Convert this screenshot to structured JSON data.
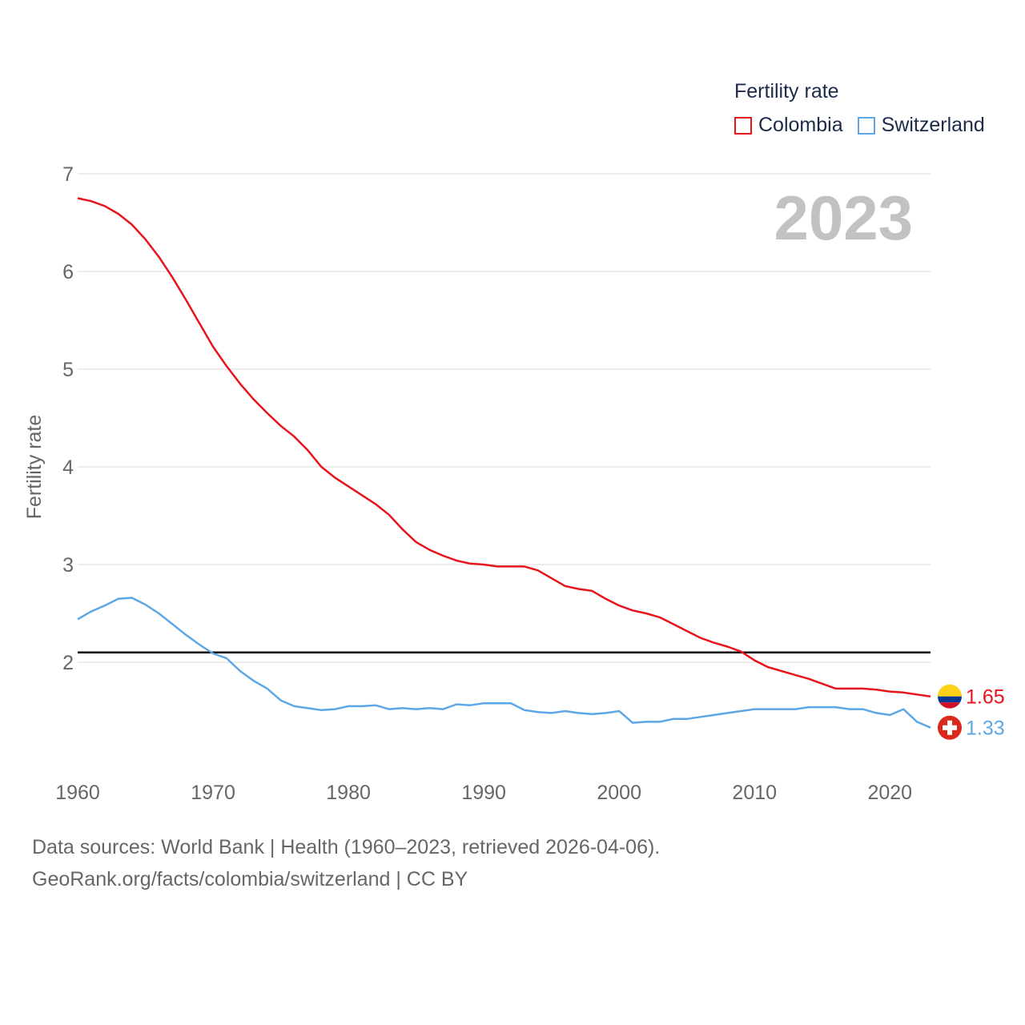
{
  "legend": {
    "title": "Fertility rate",
    "items": [
      {
        "label": "Colombia",
        "color": "#e8141b"
      },
      {
        "label": "Switzerland",
        "color": "#5ea7e6"
      }
    ]
  },
  "footer": {
    "line1": "Data sources: World Bank | Health (1960–2023, retrieved 2026-04-06).",
    "line2": "GeoRank.org/facts/colombia/switzerland | CC BY"
  },
  "chart_data": {
    "type": "line",
    "title": "Fertility rate",
    "year_label": "2023",
    "xlabel": "",
    "ylabel": "Fertility rate",
    "xlim": [
      1960,
      2023
    ],
    "ylim": [
      1,
      7
    ],
    "x_ticks": [
      1960,
      1970,
      1980,
      1990,
      2000,
      2010,
      2020
    ],
    "y_ticks": [
      2,
      3,
      4,
      5,
      6,
      7
    ],
    "reference_line": {
      "value": 2.1,
      "color": "#000000"
    },
    "x": [
      1960,
      1961,
      1962,
      1963,
      1964,
      1965,
      1966,
      1967,
      1968,
      1969,
      1970,
      1971,
      1972,
      1973,
      1974,
      1975,
      1976,
      1977,
      1978,
      1979,
      1980,
      1981,
      1982,
      1983,
      1984,
      1985,
      1986,
      1987,
      1988,
      1989,
      1990,
      1991,
      1992,
      1993,
      1994,
      1995,
      1996,
      1997,
      1998,
      1999,
      2000,
      2001,
      2002,
      2003,
      2004,
      2005,
      2006,
      2007,
      2008,
      2009,
      2010,
      2011,
      2012,
      2013,
      2014,
      2015,
      2016,
      2017,
      2018,
      2019,
      2020,
      2021,
      2022,
      2023
    ],
    "series": [
      {
        "name": "Colombia",
        "color": "#e8141b",
        "end_label": "1.65",
        "flag": "colombia",
        "values": [
          6.75,
          6.72,
          6.67,
          6.59,
          6.48,
          6.33,
          6.15,
          5.94,
          5.71,
          5.47,
          5.23,
          5.03,
          4.85,
          4.69,
          4.55,
          4.42,
          4.31,
          4.17,
          4.0,
          3.89,
          3.8,
          3.71,
          3.62,
          3.51,
          3.36,
          3.23,
          3.15,
          3.09,
          3.04,
          3.01,
          3.0,
          2.98,
          2.98,
          2.98,
          2.94,
          2.86,
          2.78,
          2.75,
          2.73,
          2.65,
          2.58,
          2.53,
          2.5,
          2.46,
          2.39,
          2.32,
          2.25,
          2.2,
          2.16,
          2.11,
          2.02,
          1.95,
          1.91,
          1.87,
          1.83,
          1.78,
          1.73,
          1.73,
          1.73,
          1.72,
          1.7,
          1.69,
          1.67,
          1.65
        ]
      },
      {
        "name": "Switzerland",
        "color": "#5ea7e6",
        "end_label": "1.33",
        "flag": "switzerland",
        "values": [
          2.44,
          2.52,
          2.58,
          2.65,
          2.66,
          2.59,
          2.5,
          2.39,
          2.28,
          2.18,
          2.09,
          2.04,
          1.91,
          1.81,
          1.73,
          1.61,
          1.55,
          1.53,
          1.51,
          1.52,
          1.55,
          1.55,
          1.56,
          1.52,
          1.53,
          1.52,
          1.53,
          1.52,
          1.57,
          1.56,
          1.58,
          1.58,
          1.58,
          1.51,
          1.49,
          1.48,
          1.5,
          1.48,
          1.47,
          1.48,
          1.5,
          1.38,
          1.39,
          1.39,
          1.42,
          1.42,
          1.44,
          1.46,
          1.48,
          1.5,
          1.52,
          1.52,
          1.52,
          1.52,
          1.54,
          1.54,
          1.54,
          1.52,
          1.52,
          1.48,
          1.46,
          1.52,
          1.39,
          1.33
        ]
      }
    ]
  }
}
